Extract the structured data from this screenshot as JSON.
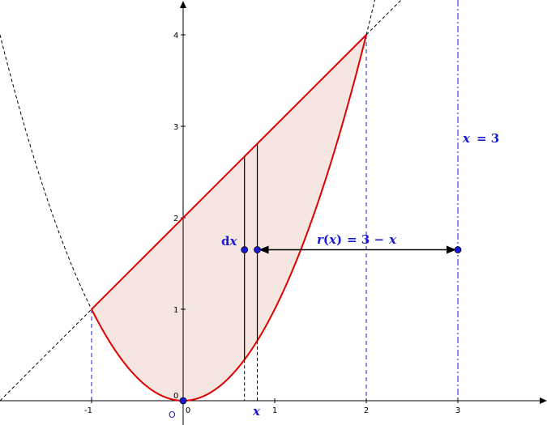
{
  "diagram": {
    "x_ticks": [
      "-1",
      "0",
      "1",
      "2",
      "3"
    ],
    "y_ticks": [
      "0",
      "1",
      "2",
      "3",
      "4"
    ],
    "origin_label": "O",
    "line_label": "x = 3",
    "line_label_x": "x",
    "line_label_eq": "= 3",
    "radius_label": "r(x) = 3 − x",
    "radius_r": "r",
    "radius_open": "(",
    "radius_x": "x",
    "radius_close": ")",
    "radius_eq": "= 3 −",
    "radius_x2": "x",
    "dx_label": "dx",
    "dx_d": "d",
    "dx_x": "x",
    "x_marker_label": "x",
    "region": {
      "upper": "y = x + 2",
      "lower": "y = x^2",
      "x_from": -1,
      "x_to": 2
    },
    "strip": {
      "x_left": 0.67,
      "x_right": 0.81,
      "y_point": 1.65
    },
    "axis_of_rotation": 3,
    "colors": {
      "boundary": "#e00000",
      "fill": "#f5e6e2",
      "label": "#1a1ad6",
      "point": "#1a1ad6",
      "guide": "#1a1ad6",
      "axis": "#000000"
    }
  }
}
